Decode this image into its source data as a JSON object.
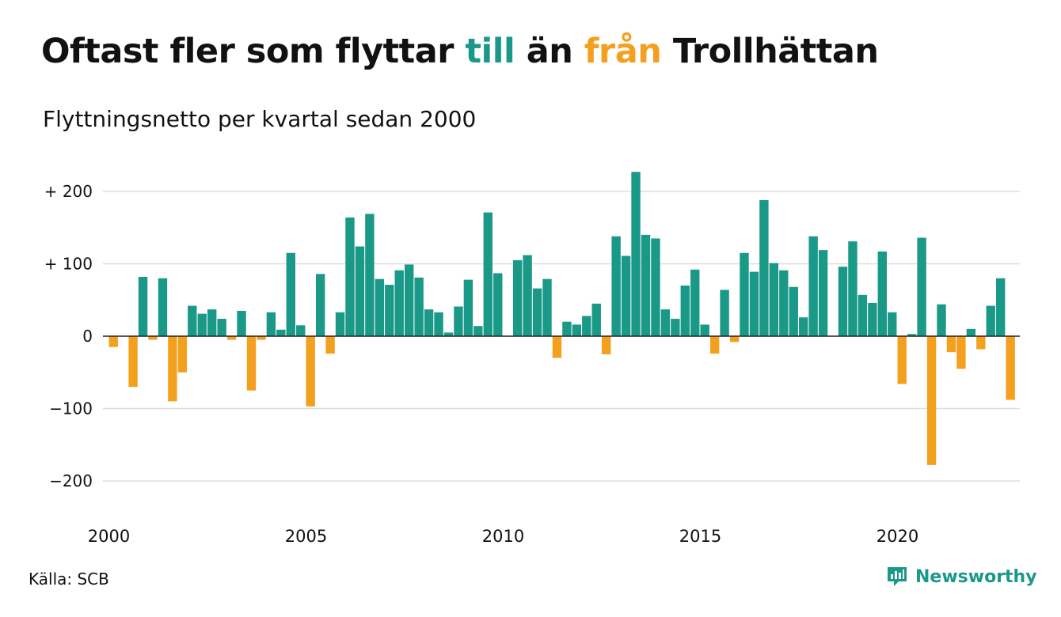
{
  "title": {
    "part1": "Oftast fler som flyttar ",
    "part2": "till",
    "part3": " än ",
    "part4": "från",
    "part5": " Trollhättan"
  },
  "subtitle": "Flyttningsnetto per kvartal sedan 2000",
  "source": "Källa: SCB",
  "brand": {
    "name": "Newsworthy",
    "icon": "newsworthy-logo-icon"
  },
  "colors": {
    "positive": "#1a9988",
    "negative": "#f4a01f",
    "grid": "#dddddd",
    "zero": "#222222"
  },
  "chart_data": {
    "type": "bar",
    "title": "Oftast fler som flyttar till än från Trollhättan",
    "subtitle": "Flyttningsnetto per kvartal sedan 2000",
    "xlabel": "",
    "ylabel": "",
    "ylim": [
      -215,
      230
    ],
    "grid": true,
    "y_ticks": [
      {
        "value": 200,
        "label": "+ 200"
      },
      {
        "value": 100,
        "label": "+ 100"
      },
      {
        "value": 0,
        "label": "0"
      },
      {
        "value": -100,
        "label": "−100"
      },
      {
        "value": -200,
        "label": "−200"
      }
    ],
    "x_ticks": [
      {
        "value": 2000,
        "label": "2000"
      },
      {
        "value": 2005,
        "label": "2005"
      },
      {
        "value": 2010,
        "label": "2010"
      },
      {
        "value": 2015,
        "label": "2015"
      },
      {
        "value": 2020,
        "label": "2020"
      }
    ],
    "x_start": 2000,
    "period": "quarter",
    "values": [
      -15,
      0,
      -70,
      82,
      -5,
      80,
      -90,
      -50,
      42,
      31,
      37,
      24,
      -5,
      35,
      -75,
      -5,
      33,
      9,
      115,
      15,
      -97,
      86,
      -24,
      33,
      164,
      124,
      169,
      79,
      71,
      91,
      99,
      81,
      37,
      33,
      5,
      41,
      78,
      14,
      171,
      87,
      0,
      105,
      112,
      66,
      79,
      -30,
      20,
      16,
      28,
      45,
      -25,
      138,
      111,
      227,
      140,
      135,
      37,
      24,
      70,
      92,
      16,
      -24,
      64,
      -8,
      115,
      89,
      188,
      101,
      91,
      68,
      26,
      138,
      119,
      0,
      96,
      131,
      57,
      46,
      117,
      33,
      -66,
      3,
      136,
      -178,
      44,
      -22,
      -45,
      10,
      -18,
      42,
      80,
      -88
    ]
  }
}
